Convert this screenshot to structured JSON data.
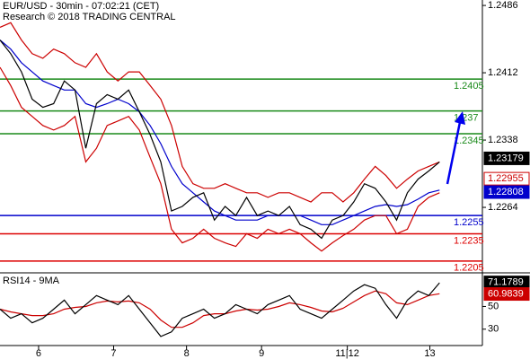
{
  "chart_data": [
    {
      "type": "line",
      "title": "EUR/USD - 30min - 07:02:21 (CET)",
      "subtitle": "Research © 2018 TRADING CENTRAL",
      "x": [
        0,
        1,
        2,
        3,
        4,
        5,
        6,
        7,
        8,
        9,
        10,
        11,
        12,
        13,
        14,
        15,
        16,
        17,
        18,
        19,
        20,
        21,
        22,
        23,
        24,
        25,
        26,
        27,
        28,
        29,
        30,
        31,
        32,
        33,
        34,
        35,
        36,
        37,
        38,
        39,
        40,
        41
      ],
      "xlim": [
        0,
        45
      ],
      "ylim": [
        1.2193,
        1.2492
      ],
      "yticks": [
        1.2264,
        1.2338,
        1.2412,
        1.2486
      ],
      "series": [
        {
          "color": "#cc0000",
          "values": [
            1.2462,
            1.2467,
            1.2448,
            1.2433,
            1.2428,
            1.2438,
            1.2433,
            1.2423,
            1.2418,
            1.2433,
            1.2413,
            1.2403,
            1.2413,
            1.2413,
            1.2398,
            1.2383,
            1.2354,
            1.2309,
            1.229,
            1.2285,
            1.2285,
            1.229,
            1.2285,
            1.228,
            1.228,
            1.2275,
            1.228,
            1.228,
            1.2275,
            1.227,
            1.228,
            1.228,
            1.227,
            1.228,
            1.2295,
            1.2309,
            1.2299,
            1.2285,
            1.2295,
            1.2304,
            1.2309,
            1.2314
          ]
        },
        {
          "color": "#cc0000",
          "values": [
            1.2418,
            1.2398,
            1.2374,
            1.2364,
            1.2354,
            1.2349,
            1.2354,
            1.2364,
            1.2314,
            1.2329,
            1.2354,
            1.2359,
            1.2364,
            1.2349,
            1.2319,
            1.229,
            1.224,
            1.2225,
            1.223,
            1.224,
            1.223,
            1.2225,
            1.2221,
            1.2235,
            1.223,
            1.224,
            1.2235,
            1.224,
            1.2235,
            1.2225,
            1.2216,
            1.2225,
            1.2233,
            1.224,
            1.225,
            1.2255,
            1.2255,
            1.2235,
            1.224,
            1.2265,
            1.2275,
            1.228
          ]
        },
        {
          "color": "#0000cc",
          "values": [
            1.2448,
            1.2438,
            1.2423,
            1.2413,
            1.2403,
            1.2398,
            1.2393,
            1.2393,
            1.2378,
            1.2374,
            1.2378,
            1.2383,
            1.2378,
            1.2369,
            1.2354,
            1.2334,
            1.2309,
            1.229,
            1.228,
            1.227,
            1.226,
            1.2255,
            1.225,
            1.225,
            1.225,
            1.2255,
            1.2255,
            1.2255,
            1.2255,
            1.225,
            1.2245,
            1.2245,
            1.225,
            1.2255,
            1.226,
            1.2265,
            1.2267,
            1.2265,
            1.2267,
            1.2273,
            1.228,
            1.2283
          ]
        },
        {
          "color": "#000000",
          "values": [
            1.2448,
            1.2433,
            1.2413,
            1.2383,
            1.2374,
            1.2378,
            1.2403,
            1.2393,
            1.2329,
            1.2378,
            1.2388,
            1.2383,
            1.2393,
            1.2369,
            1.2344,
            1.2314,
            1.226,
            1.2265,
            1.2275,
            1.228,
            1.225,
            1.2265,
            1.2255,
            1.2275,
            1.2255,
            1.226,
            1.2255,
            1.2265,
            1.2245,
            1.224,
            1.223,
            1.225,
            1.2255,
            1.227,
            1.229,
            1.2285,
            1.227,
            1.225,
            1.228,
            1.2295,
            1.2304,
            1.2314
          ]
        }
      ],
      "levels": [
        {
          "value": 1.2405,
          "color": "#1a8a1a"
        },
        {
          "value": 1.237,
          "color": "#1a8a1a"
        },
        {
          "value": 1.2345,
          "color": "#1a8a1a"
        },
        {
          "value": 1.2255,
          "color": "#0000cc"
        },
        {
          "value": 1.2235,
          "color": "#dd0000"
        },
        {
          "value": 1.2205,
          "color": "#dd0000"
        }
      ],
      "markers": [
        {
          "value": 1.23179,
          "fill": "#000000",
          "text": "#ffffff"
        },
        {
          "value": 1.22955,
          "fill": "#ffffff",
          "text": "#cc0000"
        },
        {
          "value": 1.22808,
          "fill": "#0000cc",
          "text": "#ffffff"
        }
      ]
    },
    {
      "type": "line",
      "title": "RSI14 - 9MA",
      "x": [
        0,
        1,
        2,
        3,
        4,
        5,
        6,
        7,
        8,
        9,
        10,
        11,
        12,
        13,
        14,
        15,
        16,
        17,
        18,
        19,
        20,
        21,
        22,
        23,
        24,
        25,
        26,
        27,
        28,
        29,
        30,
        31,
        32,
        33,
        34,
        35,
        36,
        37,
        38,
        39,
        40,
        41
      ],
      "xlim": [
        0,
        45
      ],
      "xticks": [
        {
          "value": 3.6,
          "label": "6"
        },
        {
          "value": 10.6,
          "label": "7"
        },
        {
          "value": 17.4,
          "label": "8"
        },
        {
          "value": 24.4,
          "label": "9"
        },
        {
          "value": 32.4,
          "label": "11|12"
        },
        {
          "value": 40.1,
          "label": "13"
        }
      ],
      "ylim": [
        15.6,
        78.8
      ],
      "yticks": [
        30,
        50
      ],
      "series": [
        {
          "color": "#cc0000",
          "values": [
            47.6,
            45.2,
            43.6,
            42,
            42,
            43.6,
            47.6,
            49.2,
            50,
            53.2,
            54.8,
            54,
            54.8,
            53.2,
            47.6,
            38,
            31.6,
            31.6,
            35.6,
            42,
            43.6,
            43.6,
            46,
            47.6,
            46.8,
            47.6,
            50,
            53.2,
            51.6,
            49.2,
            46,
            45.2,
            48.4,
            54,
            59.6,
            63.6,
            61.2,
            53.2,
            51.6,
            55.6,
            59.6,
            61.2
          ]
        },
        {
          "color": "#000000",
          "values": [
            47.6,
            39.6,
            43.6,
            35.6,
            39.6,
            47.6,
            55.6,
            43.6,
            51.6,
            59.6,
            55.6,
            51.6,
            59.6,
            47.6,
            35.6,
            23.6,
            27.6,
            39.6,
            43.6,
            47.6,
            39.6,
            43.6,
            51.6,
            47.6,
            43.6,
            51.6,
            55.6,
            59.6,
            47.6,
            43.6,
            39.6,
            47.6,
            55.6,
            63.6,
            69.2,
            66,
            51.6,
            39.6,
            55.6,
            63.6,
            59.6,
            70.8
          ]
        }
      ],
      "markers": [
        {
          "value": 71.1789,
          "fill": "#000000",
          "text": "#ffffff"
        },
        {
          "value": 60.9839,
          "fill": "#cc0000",
          "text": "#ffffff"
        }
      ]
    }
  ]
}
